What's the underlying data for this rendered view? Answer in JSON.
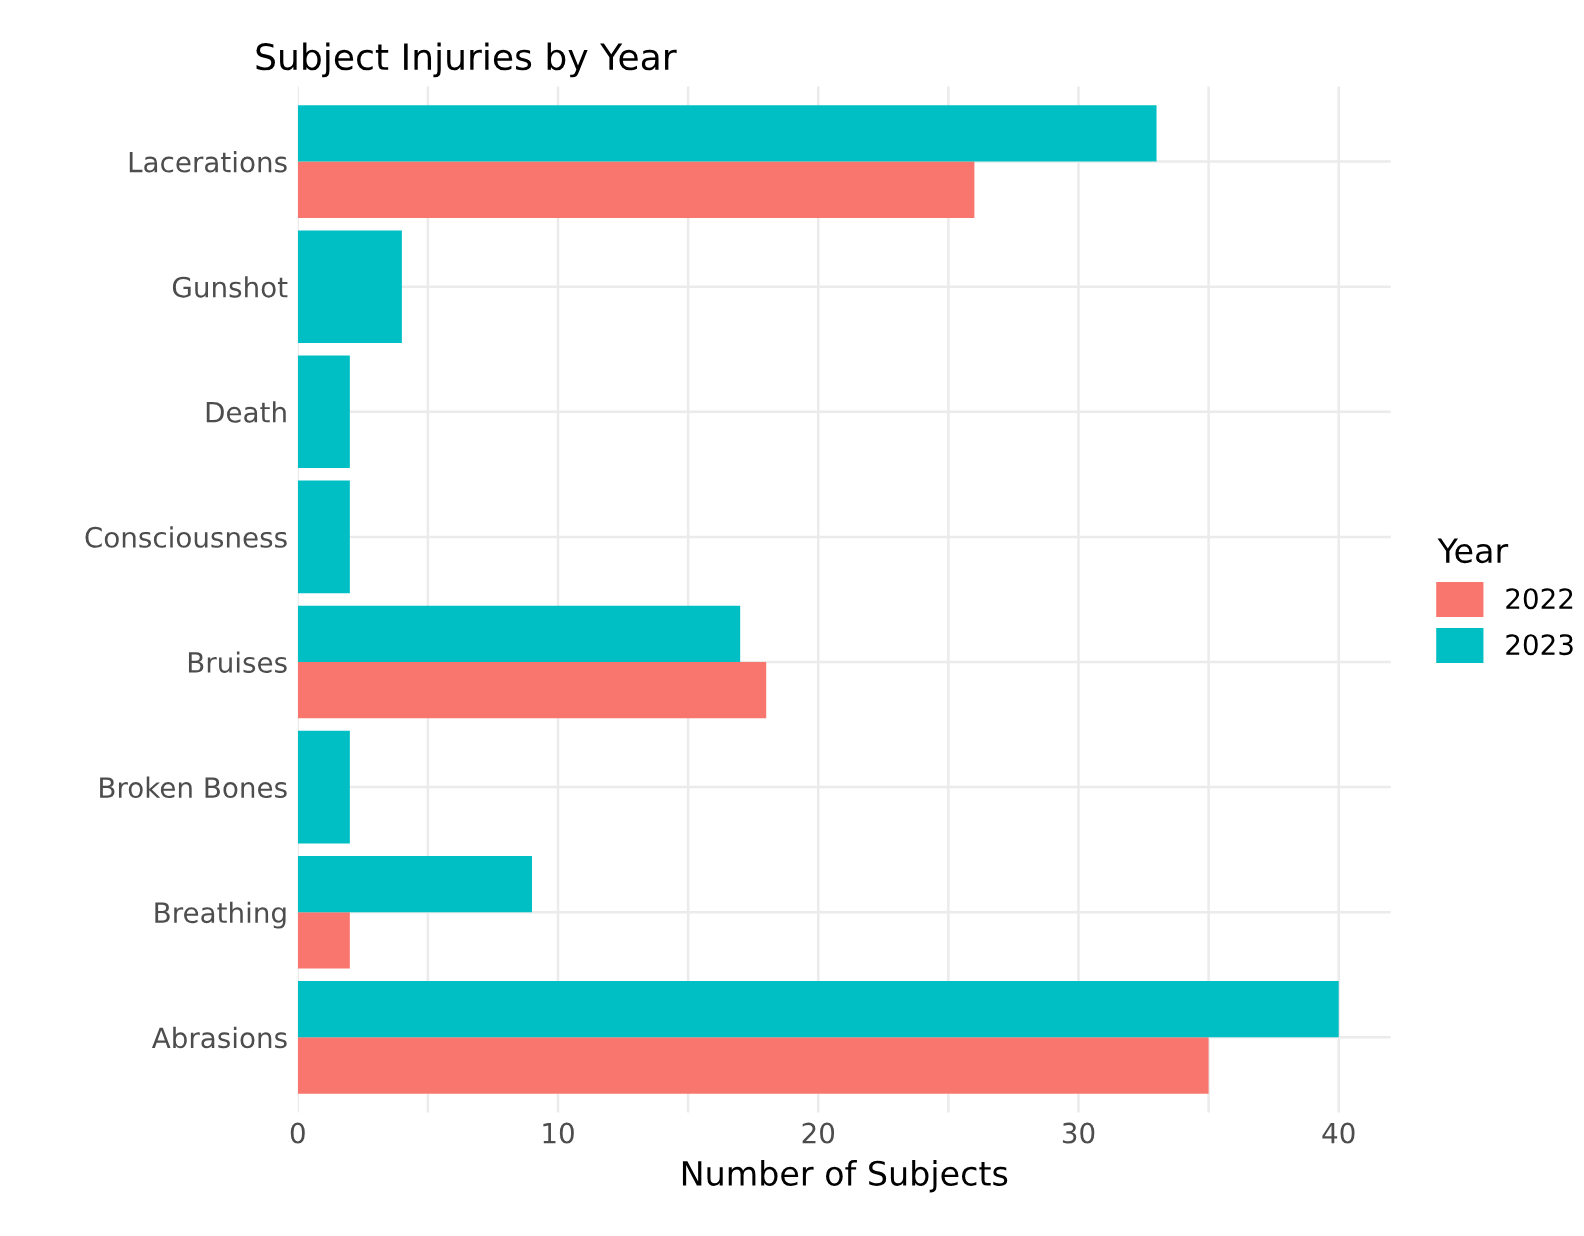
{
  "chart_data": {
    "type": "bar",
    "orientation": "horizontal",
    "title": "Subject Injuries by Year",
    "xlabel": "Number of Subjects",
    "categories": [
      "Lacerations",
      "Gunshot",
      "Death",
      "Consciousness",
      "Bruises",
      "Broken Bones",
      "Breathing",
      "Abrasions"
    ],
    "series": [
      {
        "name": "2022",
        "color": "#f8766d",
        "values": [
          26,
          null,
          null,
          null,
          18,
          null,
          2,
          35
        ]
      },
      {
        "name": "2023",
        "color": "#00bfc4",
        "values": [
          33,
          4,
          2,
          2,
          17,
          2,
          9,
          40
        ]
      }
    ],
    "xlim": [
      0,
      42
    ],
    "xticks": [
      0,
      {
        "value": 5,
        "label": null
      },
      10,
      {
        "value": 15,
        "label": null
      },
      20,
      {
        "value": 25,
        "label": null
      },
      30,
      {
        "value": 35,
        "label": null
      },
      40
    ],
    "grid": true,
    "legend": "right",
    "legend_title": "Year"
  }
}
